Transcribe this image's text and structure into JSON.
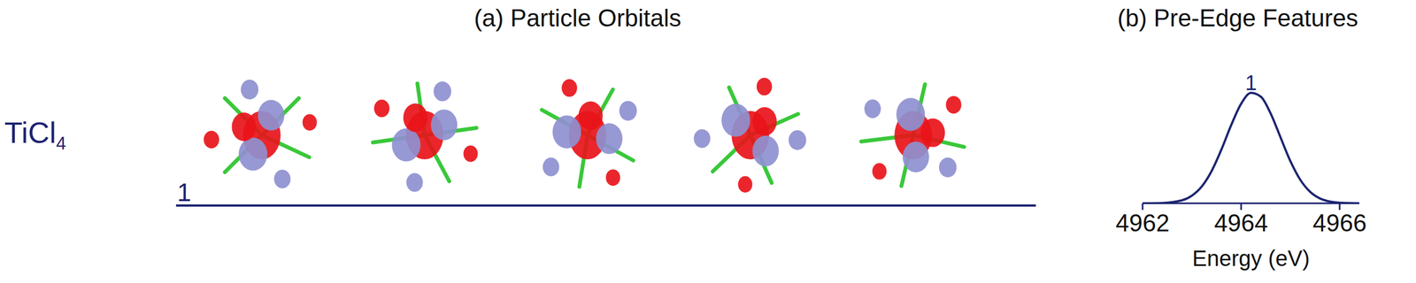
{
  "chart_data": {
    "type": "line",
    "title": "(b) Pre-Edge Features",
    "x_label": "Energy (eV)",
    "x": [
      4962.0,
      4962.4,
      4962.8,
      4963.0,
      4963.2,
      4963.4,
      4963.6,
      4963.8,
      4964.0,
      4964.2,
      4964.4,
      4964.6,
      4964.8,
      4965.0,
      4965.2,
      4965.4,
      4965.6,
      4965.8,
      4966.0,
      4966.4
    ],
    "values": [
      0.0,
      0.003,
      0.027,
      0.069,
      0.151,
      0.29,
      0.485,
      0.707,
      0.898,
      0.996,
      0.962,
      0.81,
      0.595,
      0.381,
      0.213,
      0.104,
      0.044,
      0.016,
      0.005,
      0.0
    ],
    "color": "#1d2470",
    "xlim": [
      4962,
      4966.4
    ],
    "xticks": [
      4962,
      4964,
      4966
    ],
    "ylim": [
      0,
      1.15
    ],
    "tick_labels": "x",
    "annotations": [
      {
        "x": 4964.2,
        "y": 0.996,
        "text": "1"
      }
    ]
  },
  "panel_a": {
    "title": "(a) Particle Orbitals",
    "molecule": "TiCl4",
    "transition": "1",
    "orbital_count": 5
  }
}
